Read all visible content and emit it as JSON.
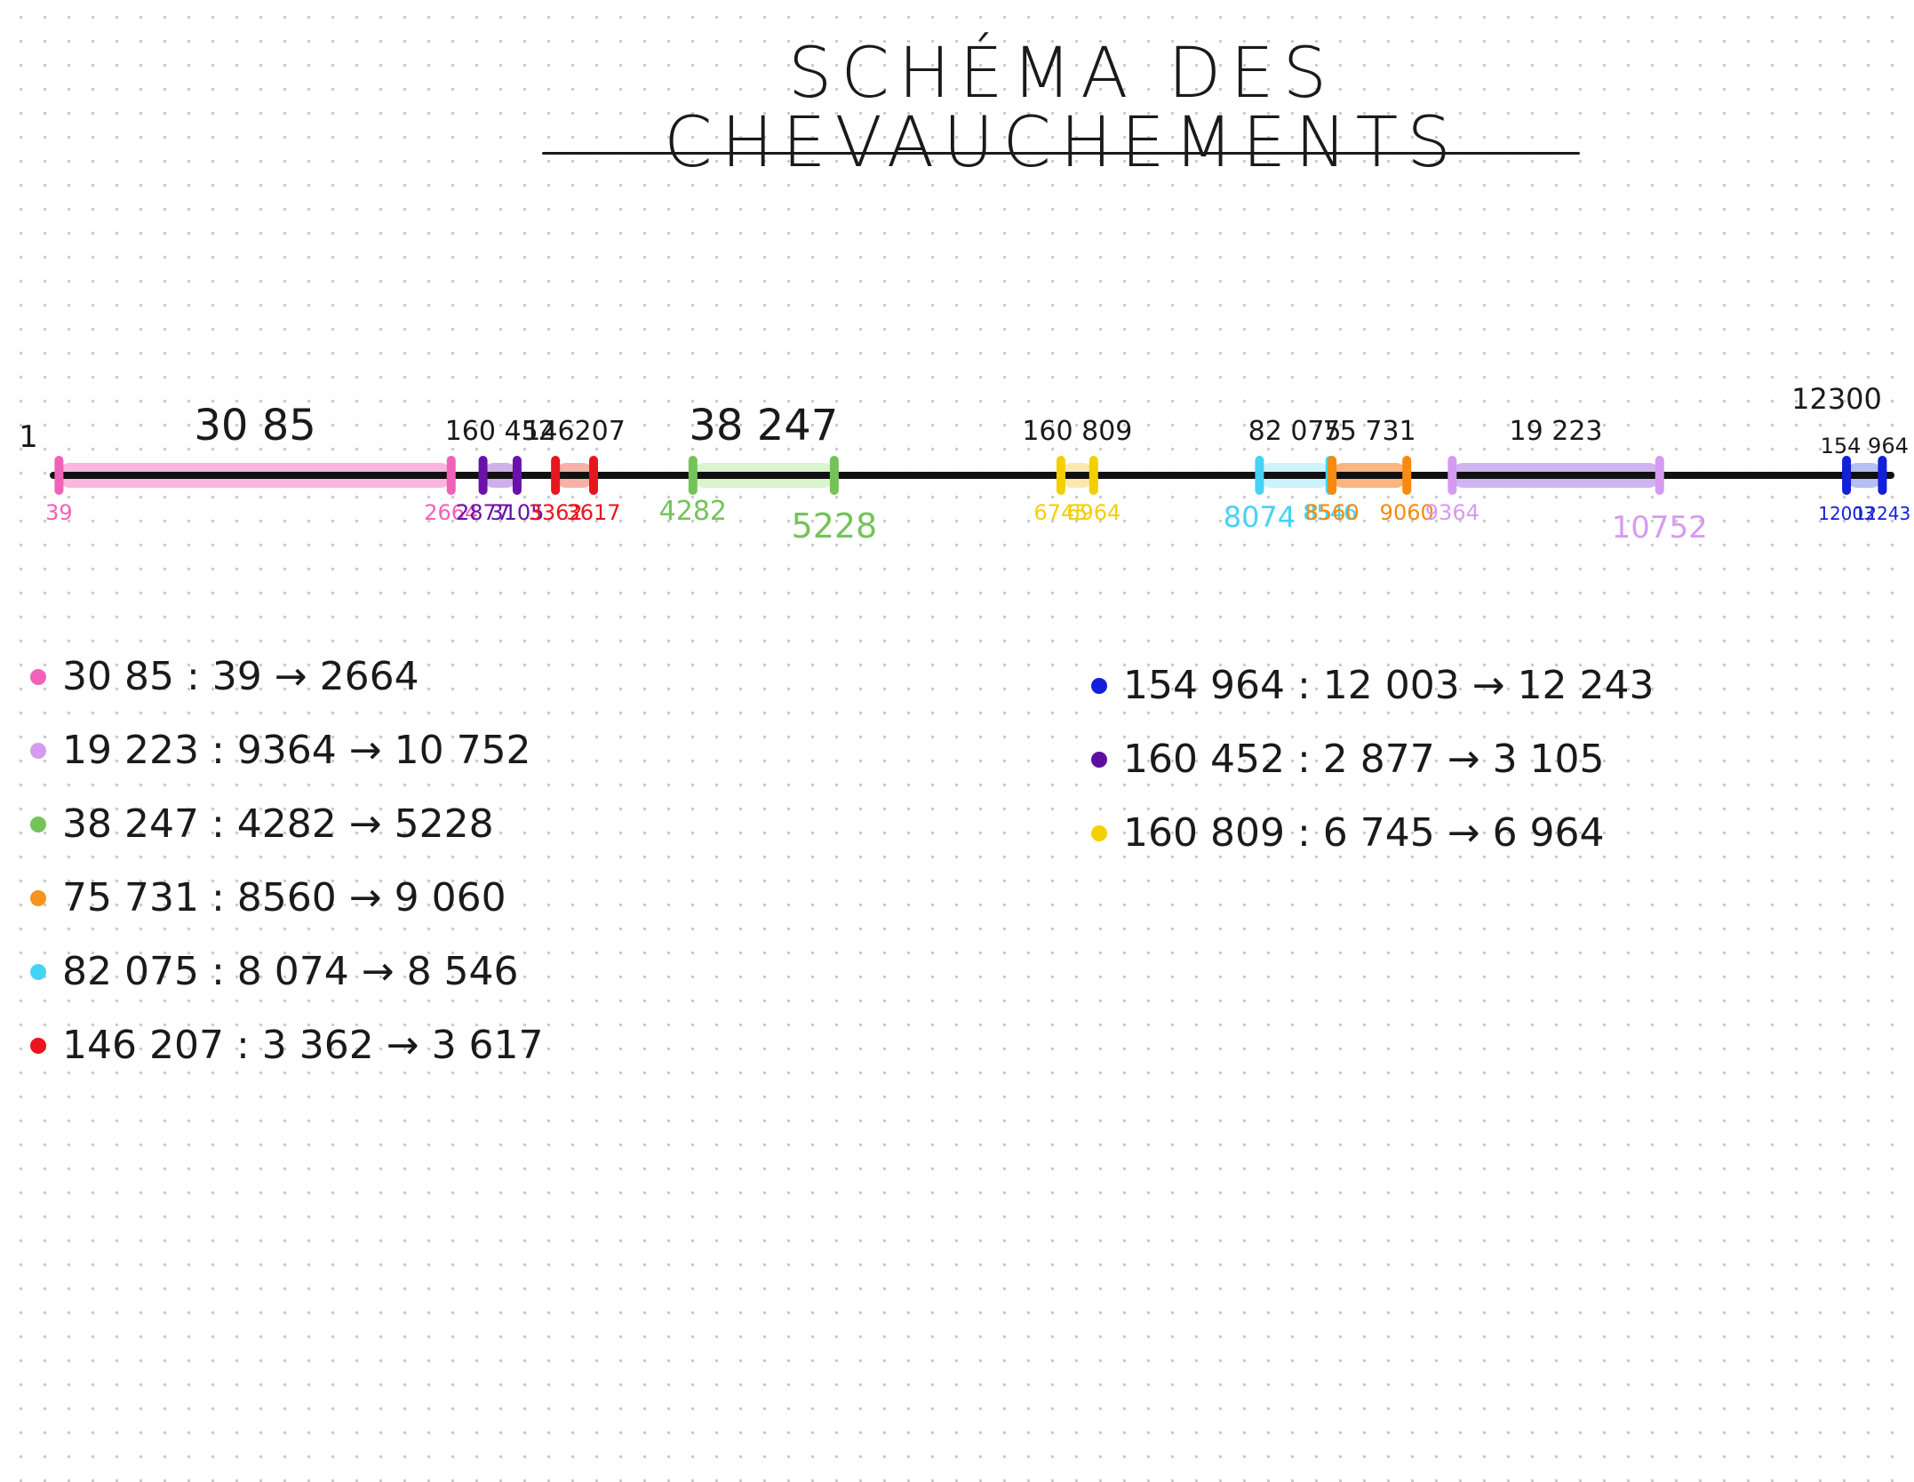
{
  "title": "SCHÉMA DES CHEVAUCHEMENTS",
  "axis": {
    "start": 1,
    "end": 12300,
    "start_label": "1",
    "end_label": "12300"
  },
  "segments": [
    {
      "id": "3085",
      "label": "30 85",
      "start": 39,
      "end": 2664,
      "start_label": "39",
      "end_label": "2664",
      "color": "#f062b8",
      "band": "#f9a9d8"
    },
    {
      "id": "160452",
      "label": "160 452",
      "start": 2877,
      "end": 3105,
      "start_label": "2877",
      "end_label": "3105",
      "color": "#6a12a8",
      "band": "#c7a2e6"
    },
    {
      "id": "146207",
      "label": "146207",
      "start": 3362,
      "end": 3617,
      "start_label": "3362",
      "end_label": "3617",
      "color": "#e8141e",
      "band": "#f7a396"
    },
    {
      "id": "38247",
      "label": "38 247",
      "start": 4282,
      "end": 5228,
      "start_label": "4282",
      "end_label": "5228",
      "color": "#74c35a",
      "band": "#d3f2c6"
    },
    {
      "id": "160809",
      "label": "160 809",
      "start": 6745,
      "end": 6964,
      "start_label": "6745",
      "end_label": "6964",
      "color": "#f2d000",
      "band": "#fbe4a0"
    },
    {
      "id": "82075",
      "label": "82 075",
      "start": 8074,
      "end": 8546,
      "start_label": "8074",
      "end_label": "8546",
      "color": "#45d3f5",
      "band": "#c4f0fb"
    },
    {
      "id": "75731",
      "label": "75 731",
      "start": 8560,
      "end": 9060,
      "start_label": "8560",
      "end_label": "9060",
      "color": "#f78a10",
      "band": "#f9a86a"
    },
    {
      "id": "19223",
      "label": "19 223",
      "start": 9364,
      "end": 10752,
      "start_label": "9364",
      "end_label": "10752",
      "color": "#d59bf0",
      "band": "#c6a8f0"
    },
    {
      "id": "154964",
      "label": "154 964",
      "start": 12003,
      "end": 12243,
      "start_label": "12003",
      "end_label": "12243",
      "color": "#1420d8",
      "band": "#a7b4f3"
    }
  ],
  "legend": {
    "left": [
      {
        "name": "30 85",
        "start": "39",
        "end": "2664",
        "color": "#f062b8"
      },
      {
        "name": "19 223",
        "start": "9364",
        "end": "10 752",
        "color": "#d59bf0"
      },
      {
        "name": "38 247",
        "start": "4282",
        "end": "5228",
        "color": "#74c35a"
      },
      {
        "name": "75 731",
        "start": "8560",
        "end": "9 060",
        "color": "#f7941d"
      },
      {
        "name": "82 075",
        "start": "8 074",
        "end": "8 546",
        "color": "#45d3f5"
      },
      {
        "name": "146 207",
        "start": "3 362",
        "end": "3 617",
        "color": "#e8141e"
      }
    ],
    "right": [
      {
        "name": "154 964",
        "start": "12 003",
        "end": "12 243",
        "color": "#1420d8"
      },
      {
        "name": "160 452",
        "start": "2 877",
        "end": "3 105",
        "color": "#5d0fa0"
      },
      {
        "name": "160 809",
        "start": "6 745",
        "end": "6 964",
        "color": "#f5d000"
      }
    ],
    "separator": ":",
    "arrow": "→"
  }
}
